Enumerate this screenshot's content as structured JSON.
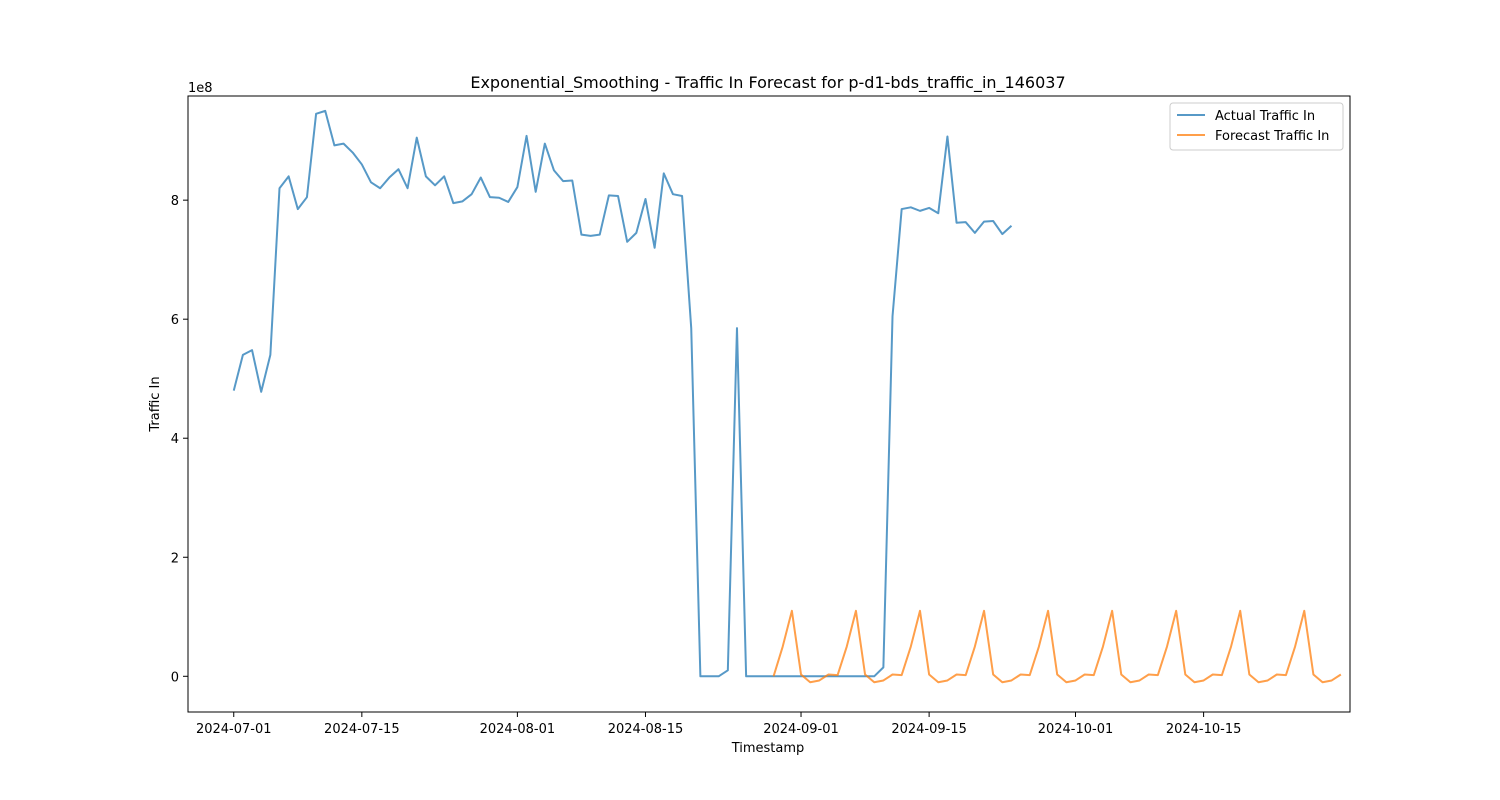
{
  "chart_data": {
    "type": "line",
    "title": "Exponential_Smoothing - Traffic In Forecast for p-d1-bds_traffic_in_146037",
    "xlabel": "Timestamp",
    "ylabel": "Traffic In",
    "y_offset_label": "1e8",
    "x_ticks": [
      "2024-07-01",
      "2024-07-15",
      "2024-08-01",
      "2024-08-15",
      "2024-09-01",
      "2024-09-15",
      "2024-10-01",
      "2024-10-15"
    ],
    "y_ticks": [
      0,
      2,
      4,
      6,
      8
    ],
    "xlim": [
      "2024-06-26",
      "2024-10-31"
    ],
    "ylim": [
      -0.6,
      9.75
    ],
    "y_scale_note": "values in units of 1e8",
    "legend_position": "top-right",
    "grid": false,
    "series": [
      {
        "name": "Actual Traffic In",
        "color": "#1f77b4",
        "start_date": "2024-07-01",
        "values": [
          4.8,
          5.4,
          5.48,
          4.78,
          5.4,
          8.2,
          8.4,
          7.85,
          8.05,
          9.45,
          9.5,
          8.92,
          8.95,
          8.8,
          8.6,
          8.3,
          8.2,
          8.38,
          8.52,
          8.2,
          9.05,
          8.4,
          8.25,
          8.4,
          7.95,
          7.98,
          8.1,
          8.38,
          8.05,
          8.04,
          7.97,
          8.22,
          9.08,
          8.14,
          8.95,
          8.5,
          8.32,
          8.33,
          7.42,
          7.4,
          7.42,
          8.08,
          8.07,
          7.3,
          7.45,
          8.02,
          7.2,
          8.45,
          8.1,
          8.07,
          5.85,
          0.0,
          0.0,
          0.0,
          0.1,
          5.85,
          0.0,
          0.0,
          0.0,
          0.0,
          0.0,
          0.0,
          0.0,
          0.0,
          0.0,
          0.0,
          0.0,
          0.0,
          0.0,
          0.0,
          0.0,
          0.15,
          6.05,
          7.85,
          7.88,
          7.82,
          7.87,
          7.78,
          9.07,
          7.62,
          7.63,
          7.45,
          7.64,
          7.65,
          7.43,
          7.57
        ]
      },
      {
        "name": "Forecast Traffic In",
        "color": "#ff7f0e",
        "start_date": "2024-08-29",
        "values": [
          0.0,
          0.5,
          1.1,
          0.03,
          -0.1,
          -0.07,
          0.03,
          0.02,
          0.5,
          1.1,
          0.03,
          -0.1,
          -0.07,
          0.03,
          0.02,
          0.5,
          1.1,
          0.03,
          -0.1,
          -0.07,
          0.03,
          0.02,
          0.5,
          1.1,
          0.03,
          -0.1,
          -0.07,
          0.03,
          0.02,
          0.5,
          1.1,
          0.03,
          -0.1,
          -0.07,
          0.03,
          0.02,
          0.5,
          1.1,
          0.03,
          -0.1,
          -0.07,
          0.03,
          0.02,
          0.5,
          1.1,
          0.03,
          -0.1,
          -0.07,
          0.03,
          0.02,
          0.5,
          1.1,
          0.03,
          -0.1,
          -0.07,
          0.03,
          0.02,
          0.5,
          1.1,
          0.03,
          -0.1,
          -0.07,
          0.03
        ]
      }
    ]
  }
}
